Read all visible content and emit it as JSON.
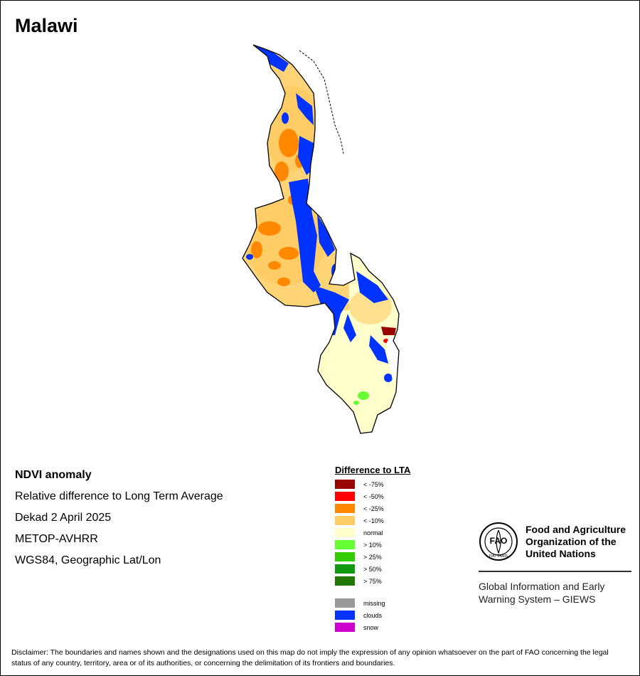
{
  "title": "Malawi",
  "info": {
    "product": "NDVI anomaly",
    "description": "Relative difference to Long Term Average",
    "period": "Dekad 2 April 2025",
    "sensor": "METOP-AVHRR",
    "projection": "WGS84, Geographic Lat/Lon"
  },
  "legend": {
    "title": "Difference to LTA",
    "classes": [
      {
        "label": "< -75%",
        "color": "#990000"
      },
      {
        "label": "< -50%",
        "color": "#ff0000"
      },
      {
        "label": "< -25%",
        "color": "#ff8800"
      },
      {
        "label": "< -10%",
        "color": "#ffcc66"
      },
      {
        "label": "normal",
        "color": "#ffffcc"
      },
      {
        "label": "> 10%",
        "color": "#66ff33"
      },
      {
        "label": "> 25%",
        "color": "#33cc00"
      },
      {
        "label": "> 50%",
        "color": "#119911"
      },
      {
        "label": "> 75%",
        "color": "#227700"
      }
    ],
    "other": [
      {
        "label": "missing",
        "color": "#999999"
      },
      {
        "label": "clouds",
        "color": "#0033ff"
      },
      {
        "label": "snow",
        "color": "#cc00cc"
      }
    ]
  },
  "fao": {
    "emblem_letters": "FAO",
    "emblem_motto": "FIAT PANIS",
    "org_name": "Food and Agriculture Organization of the United Nations",
    "system_name": "Global Information and Early Warning System – GIEWS"
  },
  "disclaimer": "Disclaimer: The boundaries and names shown and the designations used on this map do not imply the expression of any opinion whatsoever on the part of FAO concerning the legal status of any country, territory, area or of its authorities, or concerning the delimitation of its frontiers and boundaries."
}
